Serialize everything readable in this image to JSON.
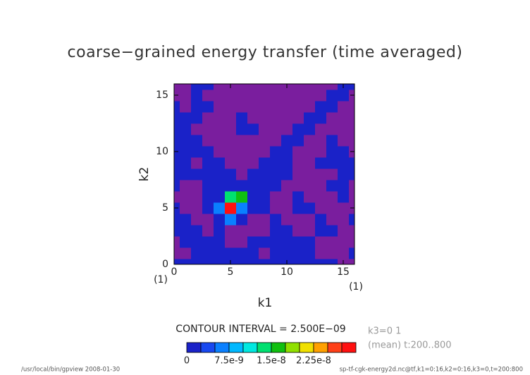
{
  "chart_data": {
    "type": "contour",
    "title": "coarse−grained energy transfer (time averaged)",
    "x_label": "k1",
    "y_label": "k2",
    "x_unit": "(1)",
    "y_unit": "(1)",
    "xlim": [
      0,
      16
    ],
    "ylim": [
      0,
      16
    ],
    "xticks": [
      0,
      5,
      10,
      15
    ],
    "yticks": [
      0,
      5,
      10,
      15
    ],
    "z": [
      [
        1e-09,
        1e-09,
        1e-09,
        1e-09,
        1e-09,
        1e-09,
        1e-09,
        1e-09,
        1e-09,
        1e-09,
        1e-09,
        1e-09,
        1e-09,
        1e-09,
        1e-09,
        -1e-09,
        -1e-09
      ],
      [
        -1e-09,
        -1e-09,
        1e-09,
        1e-09,
        1e-09,
        1e-09,
        1e-09,
        1e-09,
        -1e-09,
        1e-09,
        1e-09,
        1e-09,
        1e-09,
        -1e-09,
        -1e-09,
        -1e-09,
        1e-09
      ],
      [
        -1e-09,
        1e-09,
        1e-09,
        1e-09,
        1e-09,
        -1e-09,
        -1e-09,
        1e-09,
        1e-09,
        1e-09,
        1e-09,
        1e-09,
        1e-09,
        -1e-09,
        -1e-09,
        -1e-09,
        -1e-09
      ],
      [
        1e-09,
        1e-09,
        1e-09,
        -1e-09,
        1e-09,
        -1e-09,
        -1e-09,
        -1e-09,
        -1e-09,
        1e-09,
        1e-09,
        -1e-09,
        -1e-09,
        1e-09,
        1e-09,
        -1e-09,
        -1e-09
      ],
      [
        1e-09,
        1e-09,
        -1e-09,
        -1e-09,
        1e-09,
        6e-09,
        1e-09,
        -1e-09,
        -1e-09,
        1e-09,
        -1e-09,
        -1e-09,
        -1e-09,
        1e-09,
        -1e-09,
        -1e-09,
        1e-09
      ],
      [
        1e-09,
        -1e-09,
        -1e-09,
        1e-09,
        6e-09,
        2.8e-08,
        6e-09,
        1e-09,
        1e-09,
        -1e-09,
        -1e-09,
        1e-09,
        1e-09,
        -1e-09,
        -1e-09,
        -1e-09,
        -1e-09
      ],
      [
        -1e-09,
        -1e-09,
        -1e-09,
        1e-09,
        1e-09,
        1.4e-08,
        1.6e-08,
        1e-09,
        1e-09,
        -1e-09,
        -1e-09,
        1e-09,
        -1e-09,
        -1e-09,
        -1e-09,
        1e-09,
        -1e-09
      ],
      [
        1e-09,
        -1e-09,
        -1e-09,
        1e-09,
        1e-09,
        1e-09,
        1e-09,
        1e-09,
        1e-09,
        1e-09,
        -1e-09,
        -1e-09,
        -1e-09,
        -1e-09,
        1e-09,
        1e-09,
        -1e-09
      ],
      [
        1e-09,
        1e-09,
        1e-09,
        1e-09,
        1e-09,
        1e-09,
        -1e-09,
        1e-09,
        1e-09,
        1e-09,
        1e-09,
        -1e-09,
        -1e-09,
        -1e-09,
        -1e-09,
        1e-09,
        1e-09
      ],
      [
        1e-09,
        1e-09,
        -1e-09,
        1e-09,
        1e-09,
        -1e-09,
        -1e-09,
        -1e-09,
        1e-09,
        1e-09,
        1e-09,
        -1e-09,
        -1e-09,
        1e-09,
        1e-09,
        1e-09,
        1e-09
      ],
      [
        1e-09,
        1e-09,
        1e-09,
        1e-09,
        -1e-09,
        -1e-09,
        -1e-09,
        -1e-09,
        -1e-09,
        1e-09,
        1e-09,
        -1e-09,
        -1e-09,
        -1e-09,
        1e-09,
        1e-09,
        -1e-09
      ],
      [
        1e-09,
        1e-09,
        1e-09,
        -1e-09,
        -1e-09,
        -1e-09,
        -1e-09,
        -1e-09,
        -1e-09,
        -1e-09,
        1e-09,
        1e-09,
        -1e-09,
        -1e-09,
        1e-09,
        -1e-09,
        -1e-09
      ],
      [
        1e-09,
        1e-09,
        -1e-09,
        -1e-09,
        -1e-09,
        -1e-09,
        1e-09,
        1e-09,
        -1e-09,
        -1e-09,
        -1e-09,
        1e-09,
        1e-09,
        -1e-09,
        -1e-09,
        -1e-09,
        -1e-09
      ],
      [
        1e-09,
        1e-09,
        1e-09,
        -1e-09,
        -1e-09,
        -1e-09,
        1e-09,
        -1e-09,
        -1e-09,
        -1e-09,
        -1e-09,
        -1e-09,
        1e-09,
        1e-09,
        -1e-09,
        -1e-09,
        -1e-09
      ],
      [
        1e-09,
        -1e-09,
        1e-09,
        1e-09,
        -1e-09,
        -1e-09,
        -1e-09,
        -1e-09,
        -1e-09,
        -1e-09,
        -1e-09,
        -1e-09,
        -1e-09,
        1e-09,
        1e-09,
        -1e-09,
        -1e-09
      ],
      [
        -1e-09,
        -1e-09,
        1e-09,
        -1e-09,
        -1e-09,
        -1e-09,
        -1e-09,
        -1e-09,
        -1e-09,
        -1e-09,
        -1e-09,
        -1e-09,
        -1e-09,
        -1e-09,
        1e-09,
        1e-09,
        -1e-09
      ],
      [
        -1e-09,
        -1e-09,
        1e-09,
        1e-09,
        -1e-09,
        -1e-09,
        -1e-09,
        -1e-09,
        -1e-09,
        -1e-09,
        -1e-09,
        -1e-09,
        -1e-09,
        -1e-09,
        -1e-09,
        1e-09,
        1e-09
      ]
    ],
    "levels": [
      0,
      2.5e-09,
      5e-09,
      7.5e-09,
      1e-08,
      1.25e-08,
      1.5e-08,
      1.75e-08,
      2e-08,
      2.25e-08,
      2.5e-08,
      2.75e-08,
      3e-08
    ],
    "level_colors": [
      "#1a22c8",
      "#1848f0",
      "#0a80ff",
      "#00b8ff",
      "#00e8e0",
      "#00e070",
      "#10c010",
      "#90e000",
      "#f0e000",
      "#ffa000",
      "#ff4018",
      "#ff1010"
    ],
    "below_color": "#7a1e9e",
    "above_color": "#ffb0b0",
    "colorbar_ticks": [
      0,
      7.5e-09,
      1.5e-08,
      2.25e-08
    ],
    "contour_interval_label": "CONTOUR INTERVAL = 2.500E−09",
    "info_lines": [
      "k3=0 1",
      "(mean) t:200..800"
    ],
    "footer_left": "/usr/local/bin/gpview   2008-01-30",
    "footer_right": "sp-tf-cgk-energy2d.nc@tf,k1=0:16,k2=0:16,k3=0,t=200:800"
  }
}
